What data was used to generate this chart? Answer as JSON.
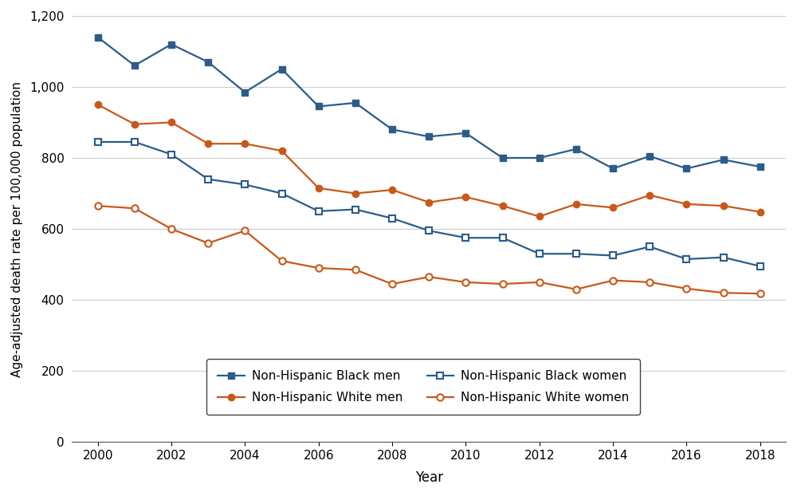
{
  "years": [
    2000,
    2001,
    2002,
    2003,
    2004,
    2005,
    2006,
    2007,
    2008,
    2009,
    2010,
    2011,
    2012,
    2013,
    2014,
    2015,
    2016,
    2017,
    2018
  ],
  "nhb_men": [
    1140,
    1060,
    1120,
    1070,
    985,
    1050,
    945,
    955,
    880,
    860,
    870,
    800,
    800,
    825,
    770,
    805,
    770,
    795,
    775
  ],
  "nhb_women": [
    845,
    845,
    810,
    740,
    725,
    700,
    650,
    655,
    630,
    595,
    575,
    575,
    530,
    530,
    525,
    550,
    515,
    520,
    495
  ],
  "nhw_men": [
    950,
    895,
    900,
    840,
    840,
    820,
    715,
    700,
    710,
    675,
    690,
    665,
    635,
    670,
    660,
    695,
    670,
    665,
    648
  ],
  "nhw_women": [
    665,
    658,
    600,
    560,
    595,
    510,
    490,
    485,
    445,
    465,
    450,
    445,
    450,
    430,
    455,
    450,
    432,
    420,
    418
  ],
  "blue": "#2B5C8A",
  "orange": "#C8581A",
  "xlabel": "Year",
  "ylabel": "Age-adjusted death rate per 100,000 population",
  "ylim": [
    0,
    1200
  ],
  "yticks": [
    0,
    200,
    400,
    600,
    800,
    1000,
    1200
  ],
  "ytick_labels": [
    "0",
    "200",
    "400",
    "600",
    "800",
    "1,000",
    "1,200"
  ],
  "xticks": [
    2000,
    2002,
    2004,
    2006,
    2008,
    2010,
    2012,
    2014,
    2016,
    2018
  ],
  "legend_labels": [
    "Non-Hispanic Black men",
    "Non-Hispanic White men",
    "Non-Hispanic Black women",
    "Non-Hispanic White women"
  ]
}
